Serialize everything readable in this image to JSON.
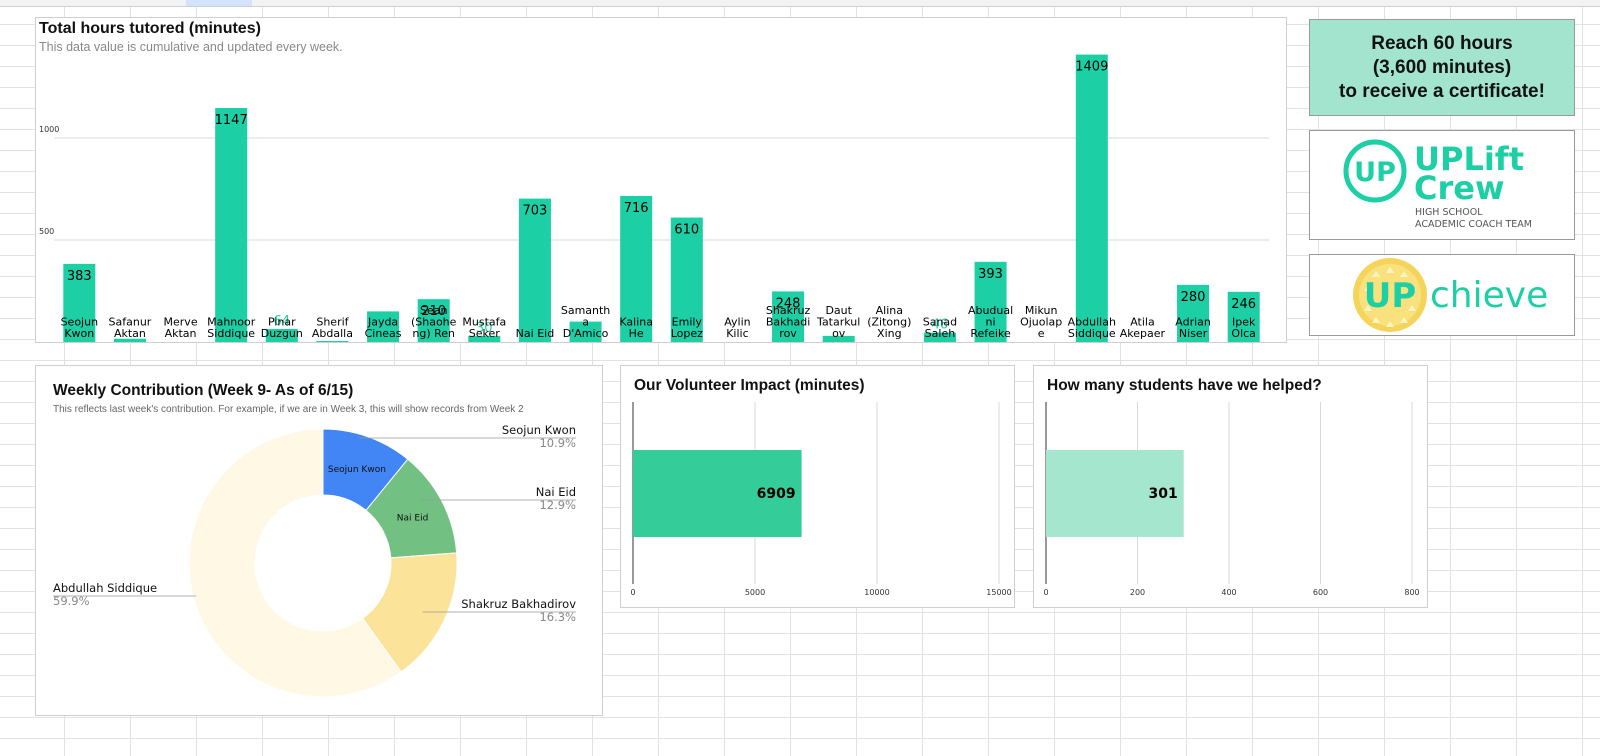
{
  "bar_chart": {
    "title": "Total hours tutored (minutes)",
    "subtitle": "This data value is cumulative and updated every week."
  },
  "donut_chart": {
    "title": "Weekly Contribution (Week 9- As of 6/15)",
    "subtitle": "This reflects last week's contribution. For example, if we are in Week 3, this will show records from Week 2"
  },
  "impact_chart": {
    "title": "Our Volunteer Impact (minutes)"
  },
  "students_chart": {
    "title": "How many students have we helped?"
  },
  "certificate": {
    "line1": "Reach 60 hours",
    "line2": "(3,600 minutes)",
    "line3": "to receive a certificate!"
  },
  "logo_uplift": {
    "mark": "UP",
    "name_line1": "UPLift",
    "name_line2": "Crew",
    "tag_line1": "HIGH SCHOOL",
    "tag_line2": "ACADEMIC COACH TEAM"
  },
  "logo_upchieve": {
    "mark": "UP",
    "word": "chieve"
  },
  "colors": {
    "bar": "#1ccfa5",
    "impact": "#34cc98",
    "students": "#a5e6cf",
    "logo": "#1ccfa5",
    "upchieve_gold": "#f5d45c"
  },
  "chart_data": [
    {
      "type": "bar",
      "title": "Total hours tutored (minutes)",
      "subtitle": "This data value is cumulative and updated every week.",
      "categories": [
        [
          "Seojun",
          "Kwon"
        ],
        [
          "Safanur",
          "Aktan"
        ],
        [
          "Merve",
          "Aktan"
        ],
        [
          "Mahnoor",
          "Siddique"
        ],
        [
          "Pinar",
          "Duzgun"
        ],
        [
          "Sherif",
          "Abdalla"
        ],
        [
          "Jayda",
          "Cineas"
        ],
        [
          "Sean",
          "(Shaohe",
          "ng) Ren"
        ],
        [
          "Mustafa",
          "Seker"
        ],
        [
          "Nai Eid"
        ],
        [
          "Samanth",
          "a",
          "D'Amico"
        ],
        [
          "Kalina",
          "He"
        ],
        [
          "Emily",
          "Lopez"
        ],
        [
          "Aylin",
          "Kilic"
        ],
        [
          "Shakruz",
          "Bakhadi",
          "rov"
        ],
        [
          "Daut",
          "Tatarkul",
          "ov"
        ],
        [
          "Alina",
          "(Zitong)",
          "Xing"
        ],
        [
          "Sanad",
          "Saleh"
        ],
        [
          "Abudual",
          "ni",
          "Refeike"
        ],
        [
          "Mikun",
          "Ojuolap",
          "e"
        ],
        [
          "Abdullah",
          "Siddique"
        ],
        [
          "Atila",
          "Akepaer"
        ],
        [
          "Adrian",
          "Niser"
        ],
        [
          "Ipek",
          "Olca"
        ]
      ],
      "values": [
        383,
        16,
        0,
        1147,
        64,
        5,
        150,
        210,
        30,
        703,
        100,
        716,
        610,
        0,
        248,
        30,
        0,
        46,
        393,
        0,
        1409,
        0,
        280,
        246
      ],
      "data_labels": [
        "383",
        "",
        "",
        "1147",
        "64",
        "",
        "",
        "210",
        "30",
        "703",
        "",
        "716",
        "610",
        "",
        "248",
        "",
        "",
        "46",
        "393",
        "",
        "1409",
        "",
        "280",
        "246"
      ],
      "ylim": [
        0,
        1500
      ],
      "yticks": [
        500,
        1000
      ],
      "grid": true
    },
    {
      "type": "pie",
      "title": "Weekly Contribution (Week 9- As of 6/15)",
      "slices": [
        {
          "label": "Seojun Kwon",
          "pct": "10.9%",
          "value": 10.9,
          "color": "#4285f4"
        },
        {
          "label": "Nai Eid",
          "pct": "12.9%",
          "value": 12.9,
          "color": "#72c183"
        },
        {
          "label": "Shakruz Bakhadirov",
          "pct": "16.3%",
          "value": 16.3,
          "color": "#fbe39a"
        },
        {
          "label": "Abdullah Siddique",
          "pct": "59.9%",
          "value": 59.9,
          "color": "#fff8e4"
        }
      ],
      "inner_labels": [
        "Seojun Kwon",
        "Nai Eid"
      ]
    },
    {
      "type": "bar",
      "orientation": "horizontal",
      "title": "Our Volunteer Impact (minutes)",
      "values": [
        6909
      ],
      "data_labels": [
        "6909"
      ],
      "xlim": [
        0,
        15000
      ],
      "xticks": [
        0,
        5000,
        10000,
        15000
      ],
      "grid": true
    },
    {
      "type": "bar",
      "orientation": "horizontal",
      "title": "How many students have we helped?",
      "values": [
        301
      ],
      "data_labels": [
        "301"
      ],
      "xlim": [
        0,
        800
      ],
      "xticks": [
        0,
        200,
        400,
        600,
        800
      ],
      "grid": true
    }
  ]
}
